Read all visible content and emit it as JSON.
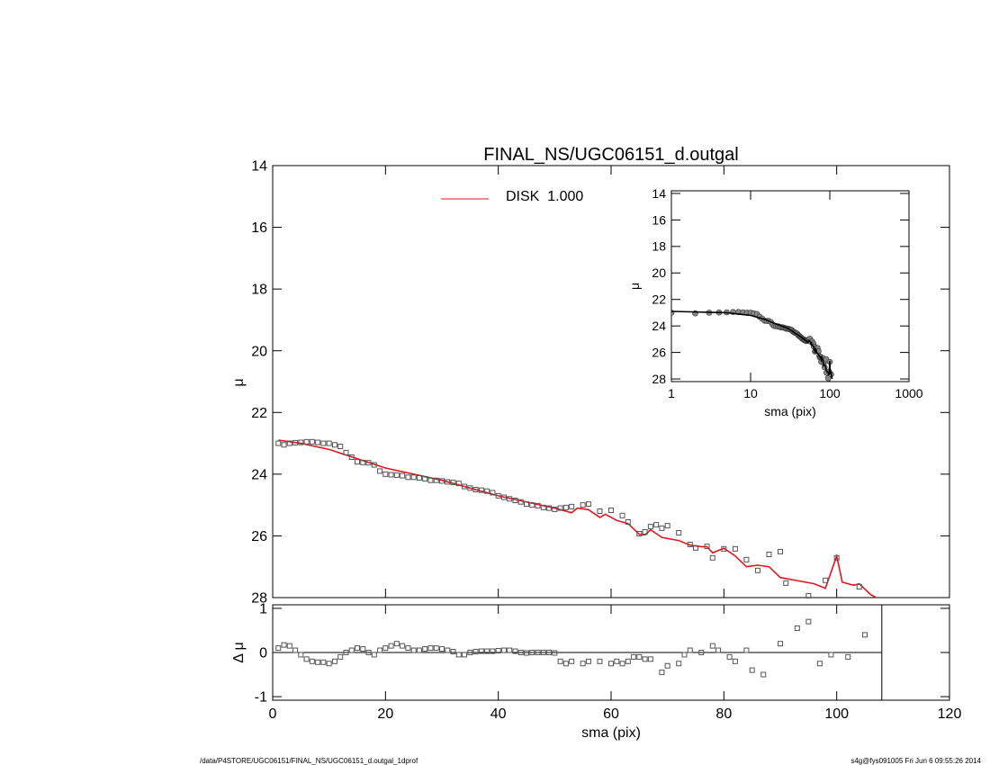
{
  "chart_data": [
    {
      "type": "scatter",
      "title": "FINAL_NS/UGC06151_d.outgal",
      "ylabel": "μ",
      "xlim": [
        0,
        120
      ],
      "xticks": [
        0,
        20,
        40,
        60,
        80,
        100,
        120
      ],
      "ylim": [
        14,
        28
      ],
      "y_inverted": true,
      "yticks": [
        14,
        16,
        18,
        20,
        22,
        24,
        26,
        28
      ],
      "marker_color": "#555555",
      "x": [
        1,
        2,
        3,
        4,
        5,
        6,
        7,
        8,
        9,
        10,
        11,
        12,
        13,
        14,
        15,
        16,
        17,
        18,
        19,
        20,
        21,
        22,
        23,
        24,
        25,
        26,
        27,
        28,
        29,
        30,
        31,
        32,
        33,
        34,
        35,
        36,
        37,
        38,
        39,
        40,
        41,
        42,
        43,
        44,
        45,
        46,
        47,
        48,
        49,
        50,
        51,
        52,
        53,
        55,
        56,
        58,
        60,
        62,
        63,
        65,
        66,
        67,
        68,
        69,
        70,
        72,
        74,
        75,
        77,
        78,
        80,
        82,
        84,
        86,
        88,
        90,
        91,
        95,
        98,
        100,
        104
      ],
      "values": [
        23.0,
        23.05,
        23.0,
        22.98,
        22.97,
        22.95,
        22.95,
        22.97,
        23.0,
        23.0,
        23.05,
        23.1,
        23.3,
        23.45,
        23.6,
        23.62,
        23.63,
        23.7,
        23.9,
        24.0,
        24.02,
        24.03,
        24.05,
        24.1,
        24.1,
        24.12,
        24.15,
        24.2,
        24.2,
        24.22,
        24.25,
        24.27,
        24.3,
        24.4,
        24.45,
        24.5,
        24.52,
        24.55,
        24.6,
        24.7,
        24.75,
        24.8,
        24.85,
        24.9,
        24.97,
        25.0,
        25.02,
        25.08,
        25.1,
        25.14,
        25.1,
        25.08,
        25.05,
        25.0,
        24.97,
        25.2,
        25.17,
        25.34,
        25.55,
        25.93,
        25.87,
        25.7,
        25.64,
        25.75,
        25.67,
        25.9,
        26.28,
        26.39,
        26.34,
        26.71,
        26.42,
        26.42,
        26.77,
        27.12,
        26.6,
        26.51,
        27.53,
        27.94,
        27.44,
        26.71,
        27.65
      ],
      "series": [
        {
          "name": "DISK  1.000",
          "color": "#e8141c",
          "x": [
            1,
            5,
            10,
            15,
            20,
            30,
            40,
            50,
            53,
            54,
            56,
            58,
            59,
            61,
            63,
            65,
            66,
            67,
            69,
            72,
            74,
            76,
            77,
            78,
            80,
            82,
            84,
            86,
            88,
            90,
            93,
            96,
            98,
            100,
            101,
            103,
            104,
            106,
            107
          ],
          "values": [
            22.9,
            23.0,
            23.2,
            23.5,
            23.8,
            24.2,
            24.7,
            25.1,
            25.25,
            25.1,
            25.15,
            25.4,
            25.3,
            25.5,
            25.6,
            25.95,
            25.97,
            25.8,
            26.05,
            26.15,
            26.3,
            26.35,
            26.35,
            26.55,
            26.4,
            26.65,
            27.0,
            26.95,
            27.0,
            27.35,
            27.45,
            27.55,
            27.7,
            26.65,
            27.5,
            27.6,
            27.55,
            27.9,
            28.0
          ]
        }
      ]
    },
    {
      "type": "inset",
      "xlabel": "sma (pix)",
      "ylabel": "μ",
      "log_x": true,
      "xlim": [
        1,
        1000
      ],
      "xticks": [
        1,
        10,
        100,
        1000
      ],
      "ylim": [
        13.8,
        28.2
      ],
      "y_inverted": true,
      "yticks": [
        14,
        16,
        18,
        20,
        22,
        24,
        26,
        28
      ]
    },
    {
      "type": "residual",
      "xlabel": "sma (pix)",
      "ylabel": "Δ μ",
      "xlim": [
        0,
        120
      ],
      "xticks": [
        0,
        20,
        40,
        60,
        80,
        100,
        120
      ],
      "ylim": [
        -1.08,
        1.08
      ],
      "yticks": [
        -1,
        0,
        1
      ],
      "vline": 108,
      "x": [
        1,
        2,
        3,
        4,
        5,
        6,
        7,
        8,
        9,
        10,
        11,
        12,
        13,
        14,
        15,
        16,
        17,
        18,
        19,
        20,
        21,
        22,
        23,
        24,
        25,
        26,
        27,
        28,
        29,
        30,
        31,
        32,
        33,
        34,
        35,
        36,
        37,
        38,
        39,
        40,
        41,
        42,
        43,
        44,
        45,
        46,
        47,
        48,
        49,
        50,
        51,
        52,
        53,
        55,
        56,
        58,
        60,
        61,
        62,
        63,
        64,
        65,
        66,
        67,
        69,
        70,
        72,
        73,
        74,
        76,
        78,
        79,
        81,
        82,
        84,
        85,
        87,
        90,
        93,
        95,
        97,
        99,
        102,
        105
      ],
      "values": [
        0.1,
        0.17,
        0.15,
        0.05,
        -0.05,
        -0.15,
        -0.2,
        -0.22,
        -0.22,
        -0.25,
        -0.2,
        -0.1,
        0,
        0.05,
        0.1,
        0.08,
        0,
        -0.05,
        0.05,
        0.1,
        0.15,
        0.2,
        0.15,
        0.1,
        0.05,
        0.05,
        0.08,
        0.1,
        0.1,
        0.08,
        0.05,
        0.02,
        -0.05,
        -0.05,
        0,
        0.02,
        0.03,
        0.03,
        0.03,
        0.04,
        0.05,
        0.05,
        0.03,
        0,
        -0.01,
        0,
        0,
        0,
        0,
        -0.01,
        -0.2,
        -0.25,
        -0.2,
        -0.25,
        -0.2,
        -0.2,
        -0.25,
        -0.2,
        -0.25,
        -0.2,
        -0.1,
        -0.1,
        -0.15,
        -0.15,
        -0.45,
        -0.3,
        -0.25,
        -0.05,
        0.05,
        0,
        0.15,
        0.05,
        -0.1,
        -0.2,
        0.05,
        -0.4,
        -0.5,
        0.2,
        0.55,
        0.7,
        -0.25,
        -0.05,
        -0.1,
        0.4
      ]
    }
  ],
  "footer": {
    "left": "/data/P4STORE/UGC06151/FINAL_NS/UGC06151_d.outgal_1dprof",
    "right": "s4g@fys091005  Fri Jun  6 09:55:26 2014"
  }
}
